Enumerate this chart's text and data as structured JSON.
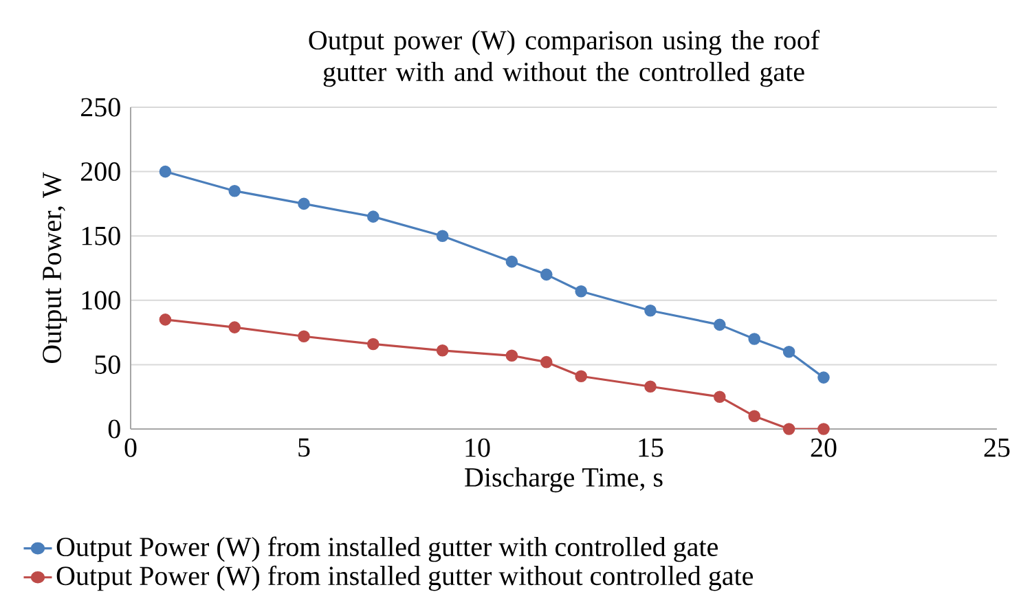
{
  "chart_data": {
    "type": "line",
    "title": "Output power (W) comparison using the roof gutter with and without the controlled gate",
    "xlabel": "Discharge Time, s",
    "ylabel": "Output Power, W",
    "xlim": [
      0,
      25
    ],
    "xticks": [
      0,
      5,
      10,
      15,
      20,
      25
    ],
    "ylim": [
      0,
      250
    ],
    "yticks": [
      0,
      50,
      100,
      150,
      200,
      250
    ],
    "grid": "y",
    "legend": "bottom",
    "marker": "circle",
    "line_style": "solid",
    "series": [
      {
        "name": "Output Power (W) from installed gutter with controlled gate",
        "color": "#4a7ebb",
        "x": [
          1,
          3,
          5,
          7,
          9,
          11,
          12,
          13,
          15,
          17,
          18,
          19,
          20
        ],
        "values": [
          200,
          185,
          175,
          165,
          150,
          130,
          120,
          107,
          92,
          81,
          70,
          60,
          40
        ]
      },
      {
        "name": "Output Power (W) from installed gutter without controlled gate",
        "color": "#be4b48",
        "x": [
          1,
          3,
          5,
          7,
          9,
          11,
          12,
          13,
          15,
          17,
          18,
          19,
          20
        ],
        "values": [
          85,
          79,
          72,
          66,
          61,
          57,
          52,
          41,
          33,
          25,
          10,
          0,
          0
        ]
      }
    ]
  }
}
